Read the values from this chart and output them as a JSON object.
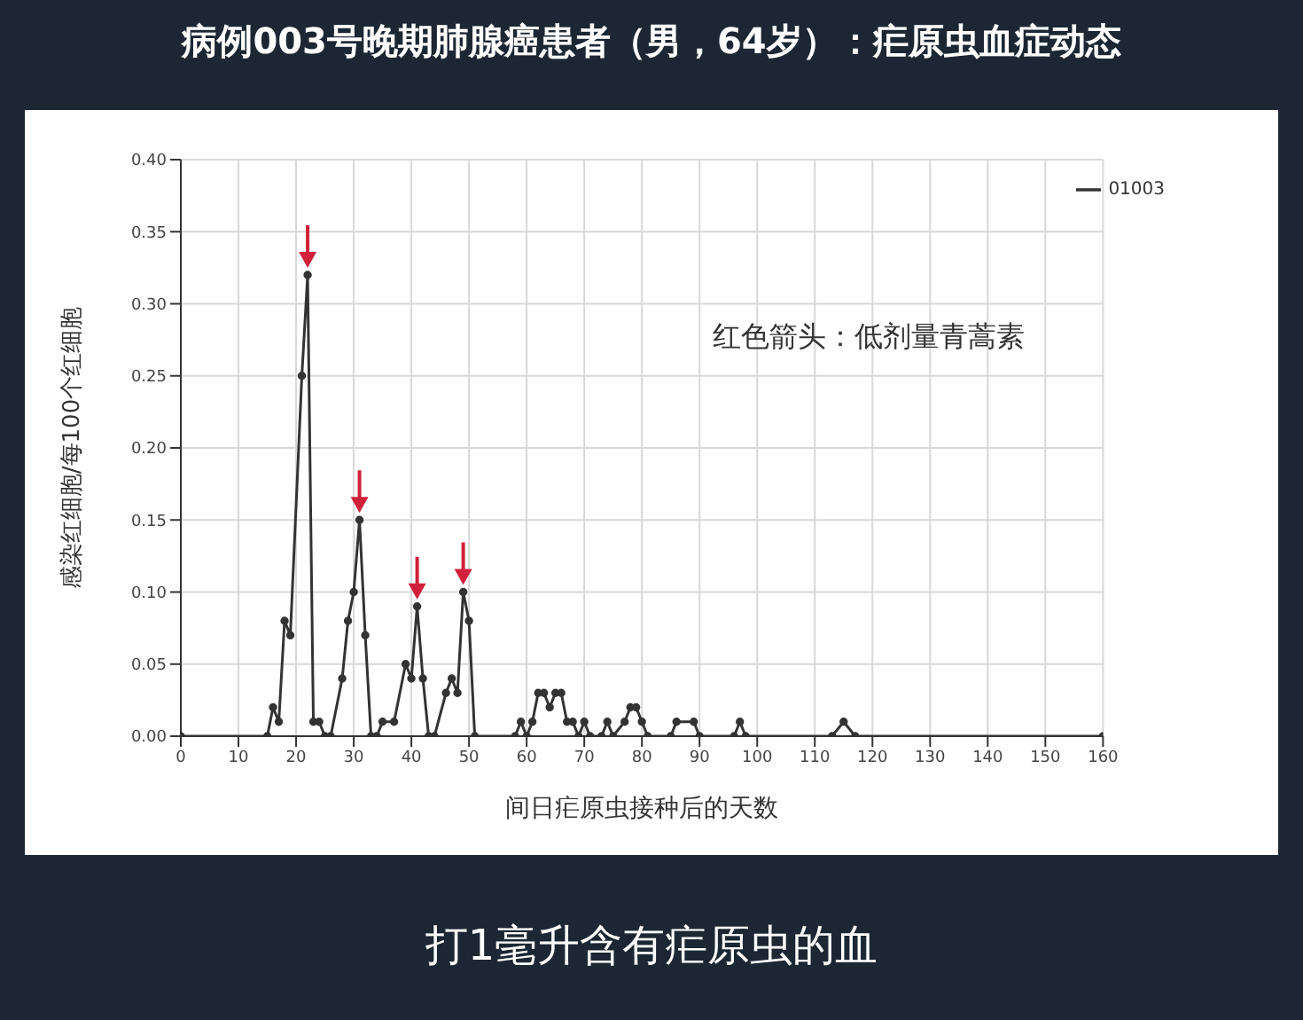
{
  "chart_data": {
    "type": "line",
    "title": "病例003号晚期肺腺癌患者（男，64岁）：疟原虫血症动态",
    "xlabel": "间日疟原虫接种后的天数",
    "ylabel": "感染红细胞/每100个红细胞",
    "annotations": [
      "红色箭头：低剂量青蒿素",
      "打1毫升含有疟原虫的血"
    ],
    "x": [
      0,
      15,
      16,
      17,
      18,
      19,
      21,
      22,
      23,
      24,
      25,
      26,
      28,
      29,
      30,
      31,
      32,
      33,
      34,
      35,
      37,
      39,
      40,
      41,
      42,
      43,
      44,
      46,
      47,
      48,
      49,
      50,
      51,
      58,
      59,
      60,
      61,
      62,
      63,
      64,
      65,
      66,
      67,
      68,
      69,
      70,
      71,
      73,
      74,
      75,
      77,
      78,
      79,
      80,
      81,
      85,
      86,
      89,
      90,
      96,
      97,
      98,
      113,
      115,
      117,
      160
    ],
    "series": [
      {
        "name": "01003",
        "color": "#333333",
        "values": [
          0,
          0,
          0.02,
          0.01,
          0.08,
          0.07,
          0.25,
          0.32,
          0.01,
          0.01,
          0,
          0,
          0.04,
          0.08,
          0.1,
          0.15,
          0.07,
          0,
          0,
          0.01,
          0.01,
          0.05,
          0.04,
          0.09,
          0.04,
          0,
          0,
          0.03,
          0.04,
          0.03,
          0.1,
          0.08,
          0,
          0,
          0.01,
          0,
          0.01,
          0.03,
          0.03,
          0.02,
          0.03,
          0.03,
          0.01,
          0.01,
          0,
          0.01,
          0,
          0,
          0.01,
          0,
          0.01,
          0.02,
          0.02,
          0.01,
          0,
          0,
          0.01,
          0.01,
          0,
          0,
          0.01,
          0,
          0,
          0.01,
          0,
          0
        ]
      }
    ],
    "xlim": [
      0,
      160
    ],
    "xticks": [
      0,
      10,
      20,
      30,
      40,
      50,
      60,
      70,
      80,
      90,
      100,
      110,
      120,
      130,
      140,
      150,
      160
    ],
    "ylim": [
      0,
      0.4
    ],
    "yticks": [
      {
        "value": 0,
        "label": "0.00"
      },
      {
        "value": 0.05,
        "label": "0.05"
      },
      {
        "value": 0.1,
        "label": "0.10"
      },
      {
        "value": 0.15,
        "label": "0.15"
      },
      {
        "value": 0.2,
        "label": "0.20"
      },
      {
        "value": 0.25,
        "label": "0.25"
      },
      {
        "value": 0.3,
        "label": "0.30"
      },
      {
        "value": 0.35,
        "label": "0.35"
      },
      {
        "value": 0.4,
        "label": "0.40"
      }
    ],
    "grid": true,
    "legend": "top right",
    "marker": "circle",
    "line_style": "solid"
  }
}
